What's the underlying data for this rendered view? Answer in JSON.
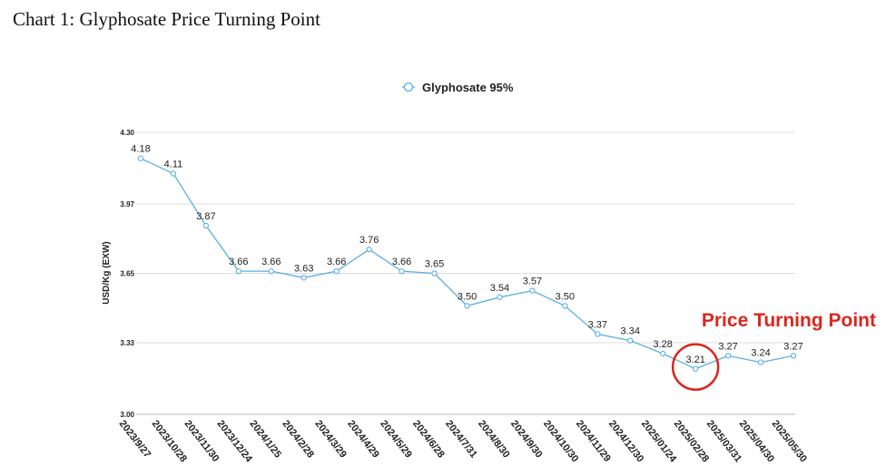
{
  "caption": "Chart 1: Glyphosate Price Turning Point",
  "colors": {
    "series": "#5aaee6",
    "annotation": "#d9261c",
    "grid": "#dddddd"
  },
  "chart_data": {
    "type": "line",
    "title": "",
    "xlabel": "",
    "ylabel": "USD/Kg   (EXW)",
    "ylim": [
      3.0,
      4.3
    ],
    "yticks": [
      "4.30",
      "3.97",
      "3.65",
      "3.33",
      "3.00"
    ],
    "ytick_values": [
      4.3,
      3.97,
      3.65,
      3.33,
      3.0
    ],
    "grid": true,
    "legend_position": "top-center",
    "categories": [
      "2023/9/27",
      "2023/10/28",
      "2023/11/30",
      "2023/12/24",
      "2024/1/25",
      "2024/2/28",
      "2024/3/29",
      "2024/4/29",
      "2024/5/29",
      "2024/6/28",
      "2024/7/31",
      "2024/8/30",
      "2024/9/30",
      "2024/10/30",
      "2024/11/29",
      "2024/12/30",
      "2025/01/24",
      "2025/02/28",
      "2025/03/31",
      "2025/04/30",
      "2025/05/30"
    ],
    "series": [
      {
        "name": "Glyphosate 95%",
        "values": [
          4.18,
          4.11,
          3.87,
          3.66,
          3.66,
          3.63,
          3.66,
          3.76,
          3.66,
          3.65,
          3.5,
          3.54,
          3.57,
          3.5,
          3.37,
          3.34,
          3.28,
          3.21,
          3.27,
          3.24,
          3.27
        ],
        "labels": [
          "4.18",
          "4.11",
          "3.87",
          "3.66",
          "3.66",
          "3.63",
          "3.66",
          "3.76",
          "3.66",
          "3.65",
          "3.50",
          "3.54",
          "3.57",
          "3.50",
          "3.37",
          "3.34",
          "3.28",
          "3.21",
          "3.27",
          "3.24",
          "3.27"
        ]
      }
    ],
    "annotations": [
      {
        "text": "Price Turning Point",
        "category_index": 17
      }
    ]
  }
}
